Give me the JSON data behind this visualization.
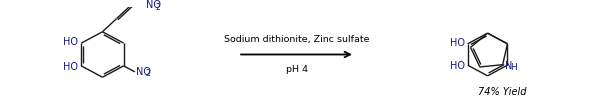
{
  "background_color": "#ffffff",
  "figsize": [
    6.06,
    1.03
  ],
  "dpi": 100,
  "text_color": "#000000",
  "bond_color": "#1a1a1a",
  "label_color": "#1a1a8c",
  "arrow_above": "Sodium dithionite, Zinc sulfate",
  "arrow_below": "pH 4",
  "yield_text": "74% Yield",
  "font_size_labels": 7.0,
  "font_size_arrow_text": 6.8,
  "font_size_yield": 7.0,
  "font_size_sub": 5.5
}
